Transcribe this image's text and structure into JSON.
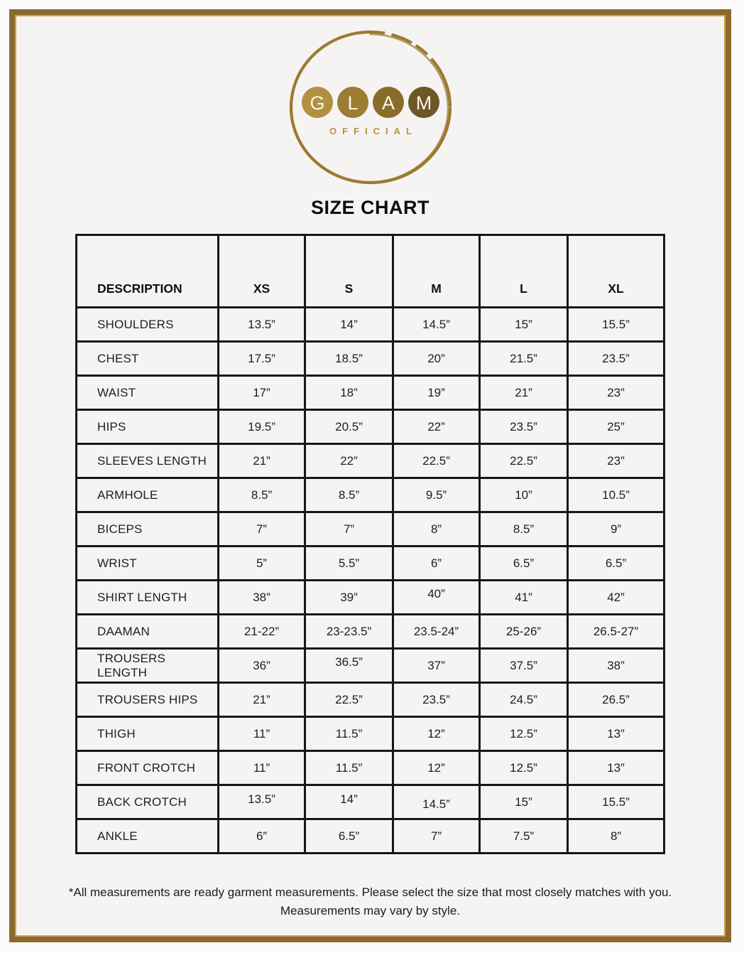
{
  "page": {
    "outer_background": "#fdfafb",
    "surface": "#f6f3f3",
    "frame_color": "#8c6a2d",
    "frame_inner_line_color": "#c9a24b"
  },
  "logo": {
    "letters": [
      "G",
      "L",
      "A",
      "M"
    ],
    "letter_circle_colors": [
      "#b19040",
      "#9d7d32",
      "#8a6c2a",
      "#6e5726"
    ],
    "ring_color": "#9c7a2e",
    "subtitle": "OFFICIAL",
    "subtitle_color": "#b59340"
  },
  "title": "SIZE CHART",
  "table": {
    "border_color": "#171717",
    "columns": [
      "DESCRIPTION",
      "XS",
      "S",
      "M",
      "L",
      "XL"
    ],
    "rows": [
      {
        "label": "SHOULDERS",
        "values": [
          "13.5”",
          "14”",
          "14.5”",
          "15”",
          "15.5”"
        ]
      },
      {
        "label": "CHEST",
        "values": [
          "17.5”",
          "18.5”",
          "20”",
          "21.5”",
          "23.5”"
        ]
      },
      {
        "label": "WAIST",
        "values": [
          "17”",
          "18”",
          "19”",
          "21”",
          "23”"
        ]
      },
      {
        "label": "HIPS",
        "values": [
          "19.5”",
          "20.5”",
          "22”",
          "23.5”",
          "25”"
        ]
      },
      {
        "label": "SLEEVES LENGTH",
        "values": [
          "21”",
          "22”",
          "22.5”",
          "22.5”",
          "23”"
        ]
      },
      {
        "label": "ARMHOLE",
        "values": [
          "8.5”",
          "8.5”",
          "9.5”",
          "10”",
          "10.5”"
        ]
      },
      {
        "label": "BICEPS",
        "values": [
          "7”",
          "7”",
          "8”",
          "8.5”",
          "9”"
        ]
      },
      {
        "label": "WRIST",
        "values": [
          "5”",
          "5.5”",
          "6”",
          "6.5”",
          "6.5”"
        ]
      },
      {
        "label": "SHIRT LENGTH",
        "values": [
          "38”",
          "39”",
          "40”",
          "41”",
          "42”"
        ]
      },
      {
        "label": "DAAMAN",
        "values": [
          "21-22”",
          "23-23.5”",
          "23.5-24”",
          "25-26”",
          "26.5-27”"
        ]
      },
      {
        "label": "TROUSERS LENGTH",
        "values": [
          "36”",
          "36.5”",
          "37”",
          "37.5”",
          "38”"
        ]
      },
      {
        "label": "TROUSERS HIPS",
        "values": [
          "21”",
          "22.5”",
          "23.5”",
          "24.5”",
          "26.5”"
        ]
      },
      {
        "label": "THIGH",
        "values": [
          "11”",
          "11.5”",
          "12”",
          "12.5”",
          "13”"
        ]
      },
      {
        "label": "FRONT CROTCH",
        "values": [
          "11”",
          "11.5”",
          "12”",
          "12.5”",
          "13”"
        ]
      },
      {
        "label": "BACK CROTCH",
        "values": [
          "13.5”",
          "14”",
          "14.5”",
          "15”",
          "15.5”"
        ]
      },
      {
        "label": "ANKLE",
        "values": [
          "6”",
          "6.5”",
          "7”",
          "7.5”",
          "8”"
        ]
      }
    ]
  },
  "footnote": {
    "line1": "*All measurements are ready garment measurements. Please select the size that most closely matches with you.",
    "line2": "Measurements may vary by style."
  }
}
